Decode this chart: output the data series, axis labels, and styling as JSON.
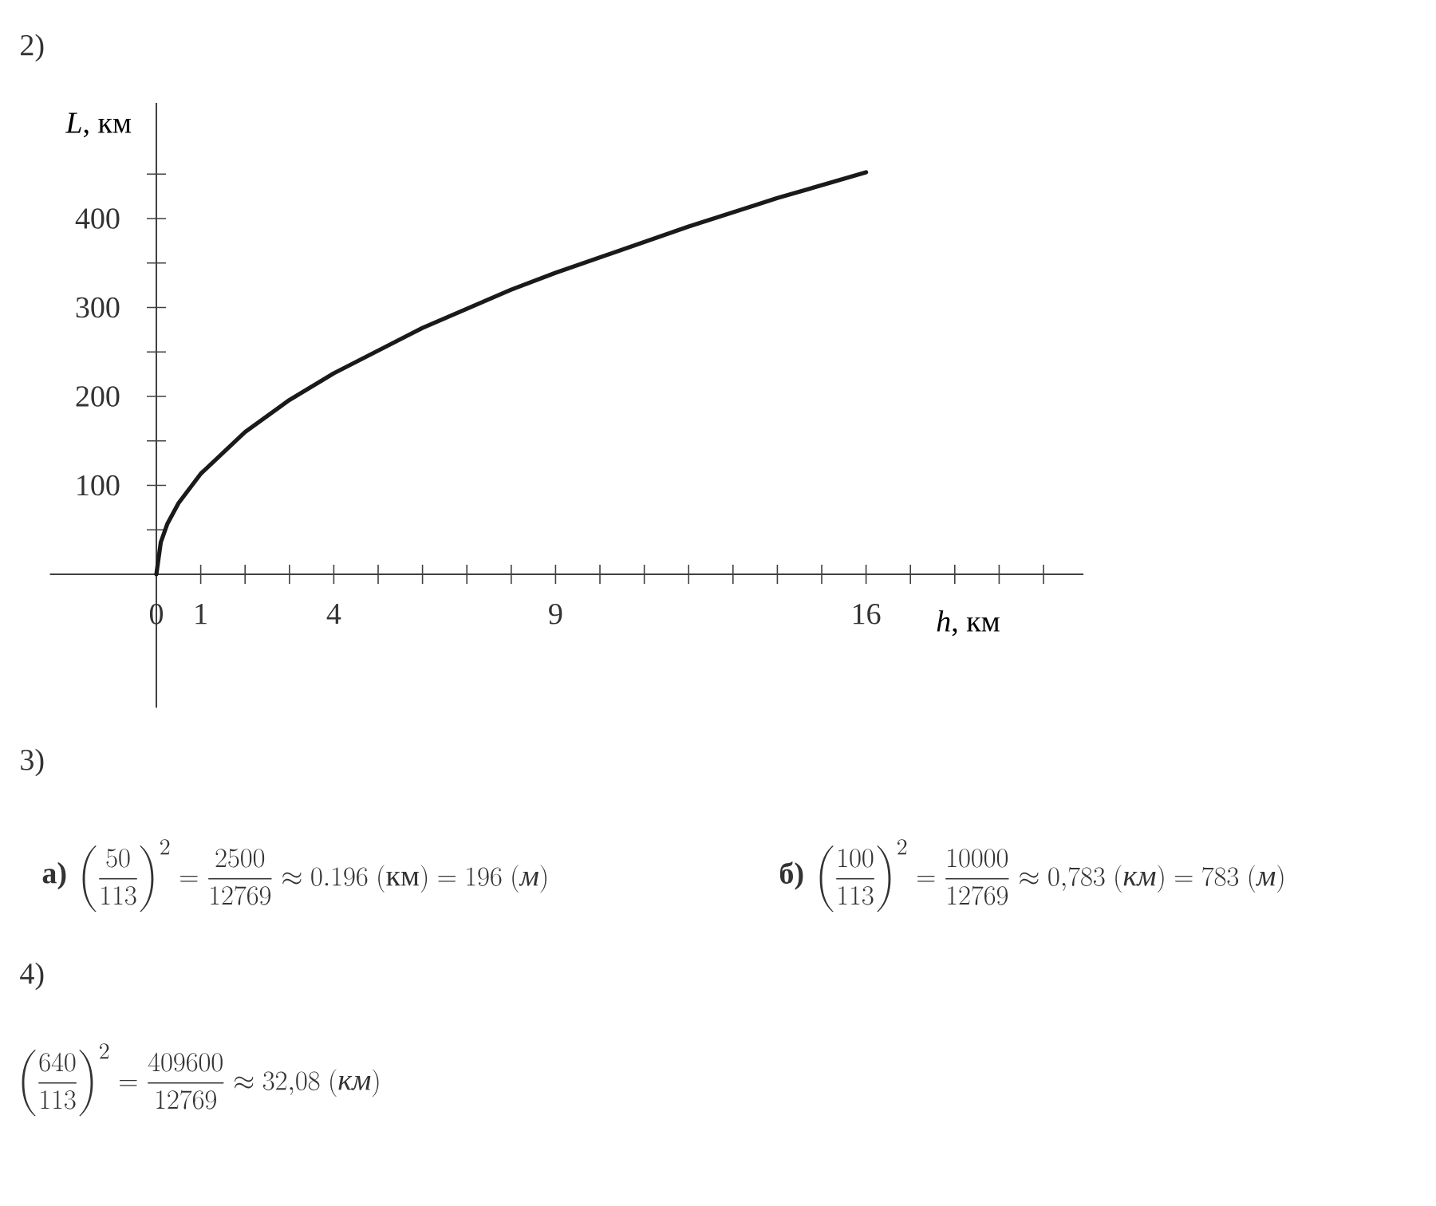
{
  "chart_data": {
    "type": "line",
    "xlabel": "*h*, км",
    "ylabel": "*L*, км",
    "x": [
      0,
      0.1,
      0.25,
      0.5,
      1,
      2,
      3,
      4,
      6,
      8,
      9,
      12,
      14,
      16
    ],
    "values": [
      0,
      36,
      57,
      80,
      113,
      160,
      196,
      226,
      277,
      320,
      339,
      391,
      423,
      452
    ],
    "color": "#1a1a1a",
    "marker": "none",
    "line_style": "solid",
    "xlim": [
      -2.4,
      20.9
    ],
    "ylim": [
      -150,
      530
    ],
    "xticks": [
      {
        "value": 0,
        "label": "0"
      },
      1,
      {
        "value": 2,
        "label": null
      },
      {
        "value": 3,
        "label": null
      },
      4,
      {
        "value": 5,
        "label": null
      },
      {
        "value": 6,
        "label": null
      },
      {
        "value": 7,
        "label": null
      },
      {
        "value": 8,
        "label": null
      },
      9,
      {
        "value": 10,
        "label": null
      },
      {
        "value": 11,
        "label": null
      },
      {
        "value": 12,
        "label": null
      },
      {
        "value": 13,
        "label": null
      },
      {
        "value": 14,
        "label": null
      },
      {
        "value": 15,
        "label": null
      },
      16,
      {
        "value": 17,
        "label": null
      },
      {
        "value": 18,
        "label": null
      },
      {
        "value": 19,
        "label": null
      },
      {
        "value": 20,
        "label": null
      }
    ],
    "yticks": [
      {
        "value": 50,
        "label": null
      },
      100,
      {
        "value": 150,
        "label": null
      },
      200,
      {
        "value": 250,
        "label": null
      },
      300,
      {
        "value": 350,
        "label": null
      },
      400,
      {
        "value": 450,
        "label": null
      }
    ],
    "annotations": [
      "2)",
      "3)",
      "а)",
      "\\left(\\frac{50}{113}\\right)^{2}=\\frac{2500}{12769}\\approx 0.196\\ (\\text{км})=196\\ (\\textit{м})",
      "б)",
      "\\left(\\frac{100}{113}\\right)^{2}=\\frac{10000}{12769}\\approx 0{,}783\\ (\\textit{км})=783\\ (\\textit{м})",
      "4)",
      "\\left(\\frac{640}{113}\\right)^{2}=\\frac{409600}{12769}\\approx 32{,}08\\ (\\textit{км})"
    ]
  }
}
